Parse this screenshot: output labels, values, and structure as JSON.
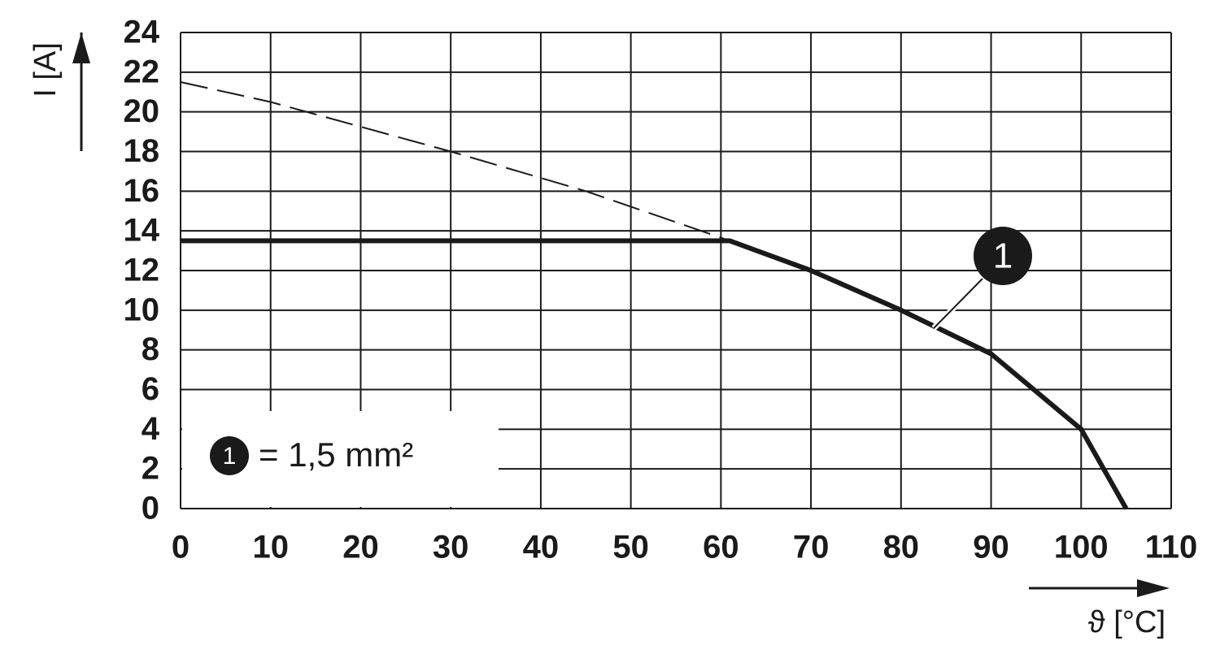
{
  "chart_data": {
    "type": "line",
    "y_label": "I [A]",
    "x_label": "ϑ [°C]",
    "xlim": [
      0,
      110
    ],
    "xticks": [
      0,
      10,
      20,
      30,
      40,
      50,
      60,
      70,
      80,
      90,
      100,
      110
    ],
    "ylim": [
      0,
      24
    ],
    "yticks": [
      0,
      2,
      4,
      6,
      8,
      10,
      12,
      14,
      16,
      18,
      20,
      22,
      24
    ],
    "grid": true,
    "series": [
      {
        "name": "1",
        "color": "#1a1a1a",
        "style": "solid",
        "x": [
          0,
          61,
          70,
          80,
          90,
          100,
          105
        ],
        "values": [
          13.5,
          13.5,
          12,
          10,
          7.8,
          4,
          0
        ]
      },
      {
        "color": "#1a1a1a",
        "style": "dashed",
        "x": [
          0,
          10,
          30,
          45,
          61
        ],
        "values": [
          21.5,
          20.5,
          18,
          16,
          13.5
        ]
      }
    ],
    "legend_text": "= 1,5 mm²"
  }
}
